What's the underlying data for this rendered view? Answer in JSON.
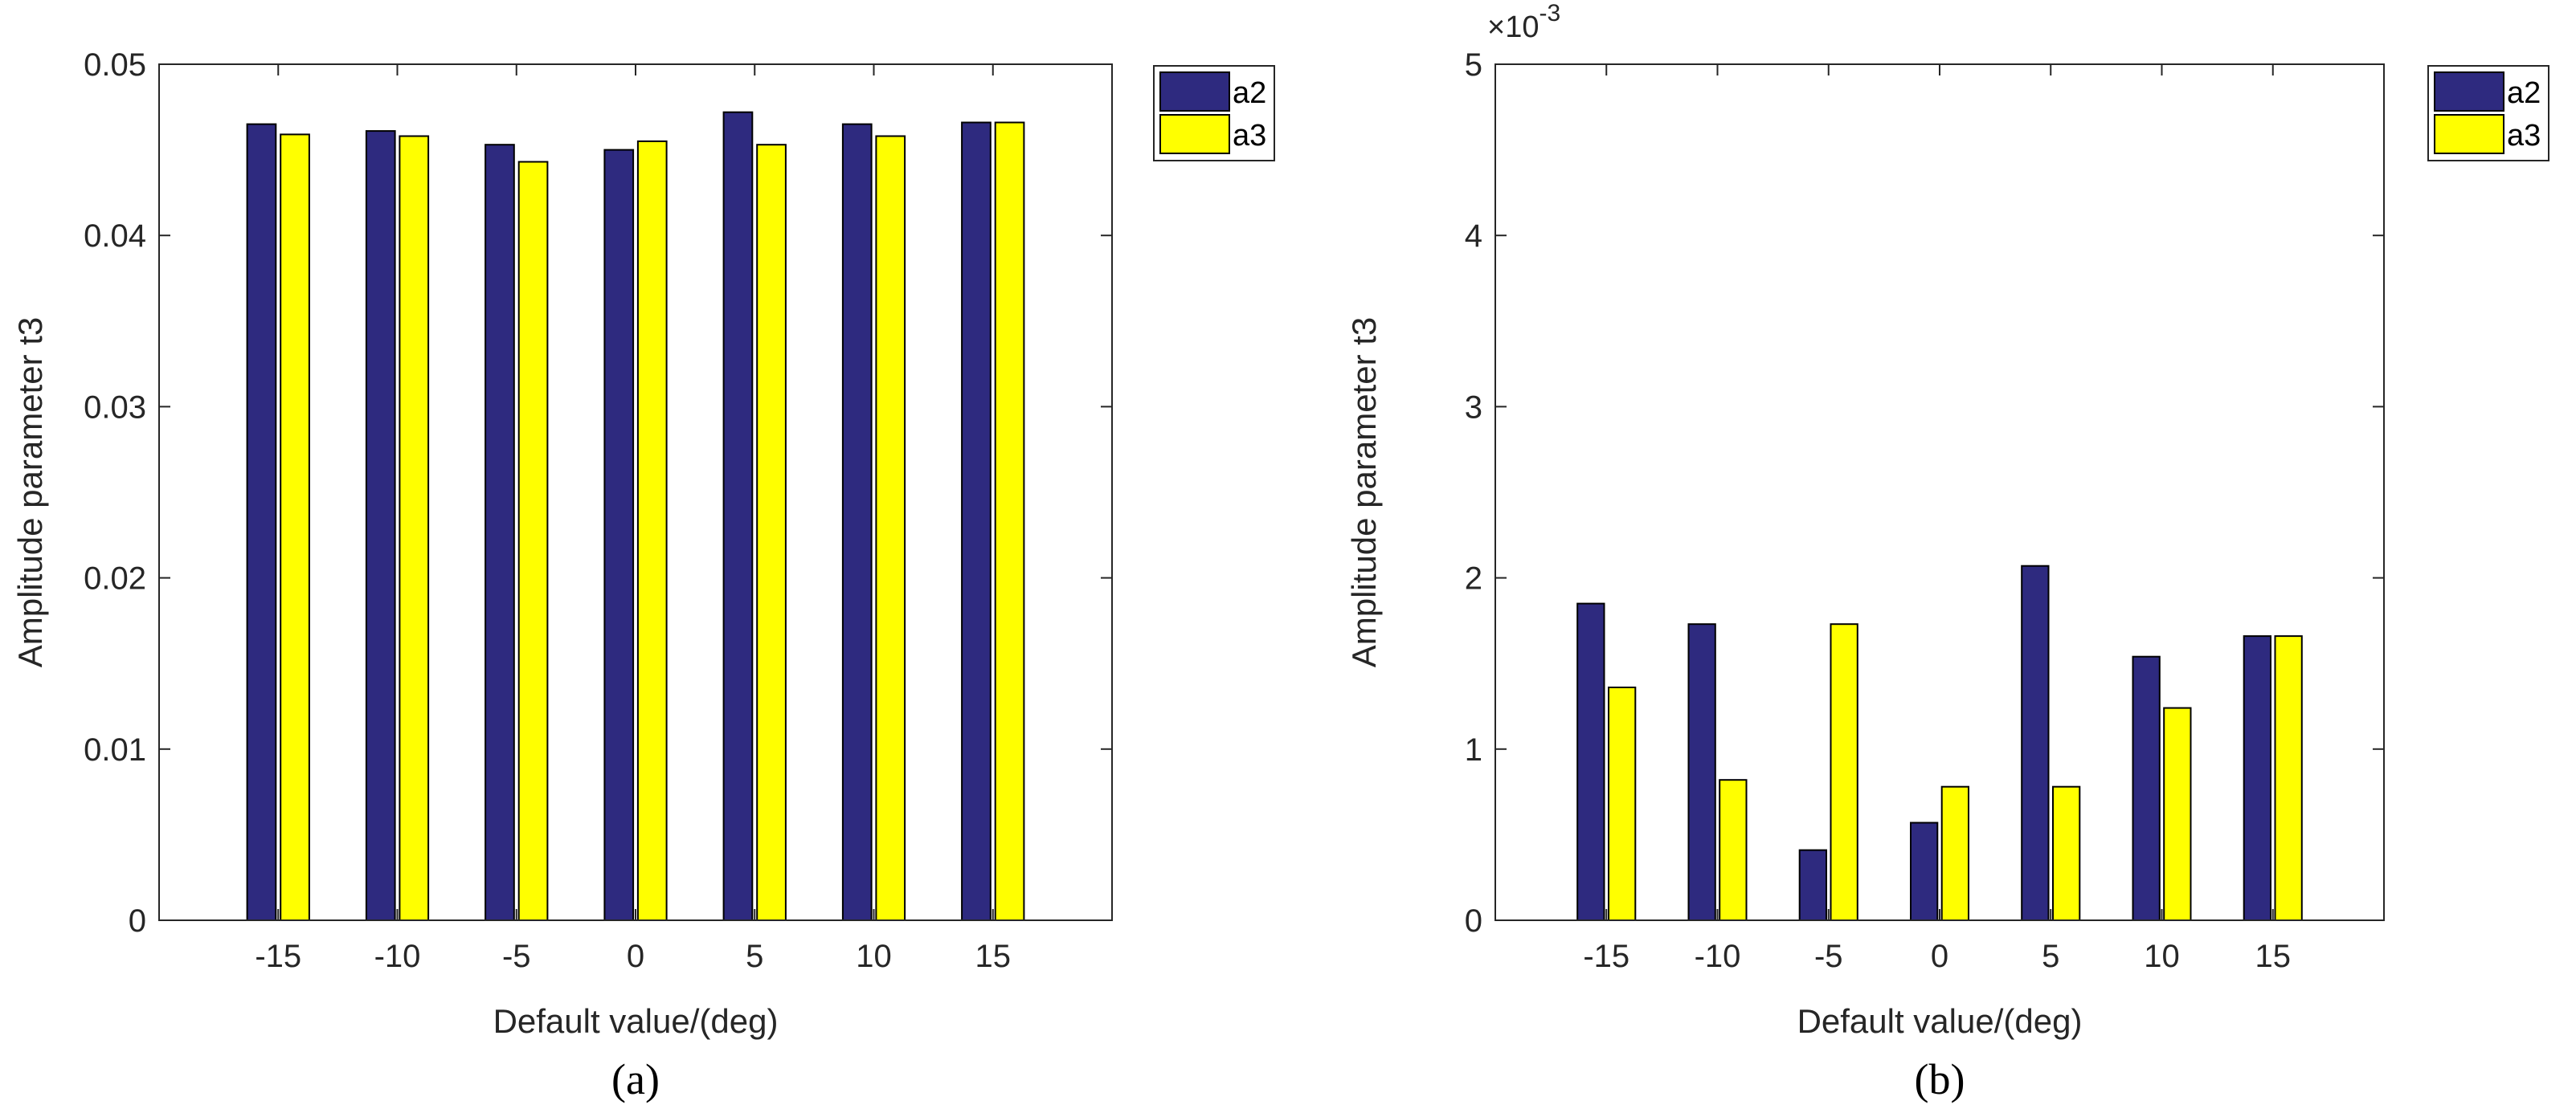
{
  "chart_data": [
    {
      "type": "bar",
      "caption": "(a)",
      "categories": [
        "-15",
        "-10",
        "-5",
        "0",
        "5",
        "10",
        "15"
      ],
      "series": [
        {
          "name": "a2",
          "color": "#2e2a7f",
          "values": [
            0.0465,
            0.0461,
            0.0453,
            0.045,
            0.0472,
            0.0465,
            0.0466
          ]
        },
        {
          "name": "a3",
          "color": "#ffff00",
          "values": [
            0.0459,
            0.0458,
            0.0443,
            0.0455,
            0.0453,
            0.0458,
            0.0466
          ]
        }
      ],
      "xlabel": "Default value/(deg)",
      "ylabel": "Amplitude parameter t3",
      "ylim": [
        0,
        0.05
      ],
      "yticks": [
        "0",
        "0.01",
        "0.02",
        "0.03",
        "0.04",
        "0.05"
      ],
      "multiplier": "",
      "grid": false,
      "legend_position": "outside-top-right"
    },
    {
      "type": "bar",
      "caption": "(b)",
      "categories": [
        "-15",
        "-10",
        "-5",
        "0",
        "5",
        "10",
        "15"
      ],
      "series": [
        {
          "name": "a2",
          "color": "#2e2a7f",
          "values": [
            1.85,
            1.73,
            0.41,
            0.57,
            2.07,
            1.54,
            1.66
          ]
        },
        {
          "name": "a3",
          "color": "#ffff00",
          "values": [
            1.36,
            0.82,
            1.73,
            0.78,
            0.78,
            1.24,
            1.66
          ]
        }
      ],
      "xlabel": "Default value/(deg)",
      "ylabel": "Amplitude parameter t3",
      "ylim": [
        0,
        5
      ],
      "yticks": [
        "0",
        "1",
        "2",
        "3",
        "4",
        "5"
      ],
      "multiplier": "×10",
      "multiplier_exp": "-3",
      "grid": false,
      "legend_position": "outside-top-right"
    }
  ]
}
